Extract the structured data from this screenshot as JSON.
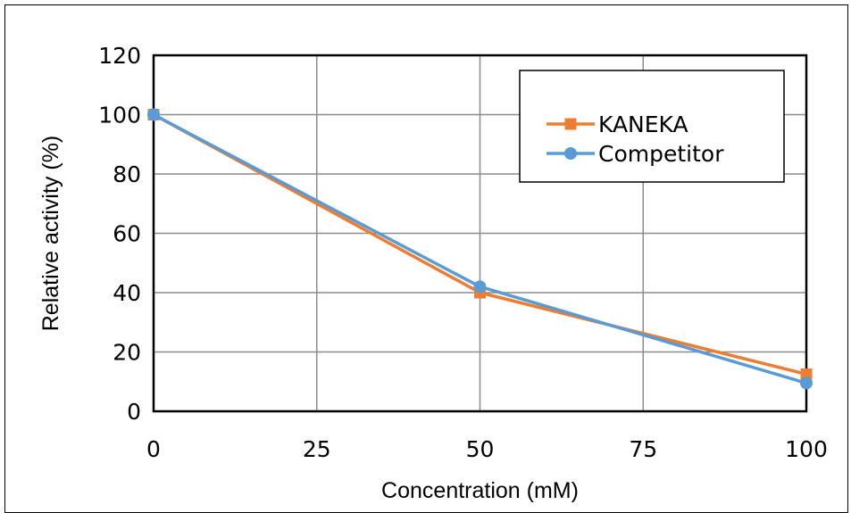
{
  "chart_data": {
    "type": "line",
    "title": "",
    "xlabel": "Concentration (mM)",
    "ylabel": "Relative activity (%)",
    "x": [
      0,
      50,
      100
    ],
    "xlim": [
      0,
      100
    ],
    "ylim": [
      0,
      120
    ],
    "xticks": [
      "0",
      "25",
      "50",
      "75",
      "100"
    ],
    "yticks": [
      "0",
      "20",
      "40",
      "60",
      "80",
      "100",
      "120"
    ],
    "grid": true,
    "legend_position": "top-right",
    "series": [
      {
        "name": "KANEKA",
        "values": [
          100,
          40,
          12.5
        ],
        "color": "#ED7D31",
        "marker": "square"
      },
      {
        "name": "Competitor",
        "values": [
          100,
          42,
          9.5
        ],
        "color": "#5B9BD5",
        "marker": "circle"
      }
    ]
  }
}
